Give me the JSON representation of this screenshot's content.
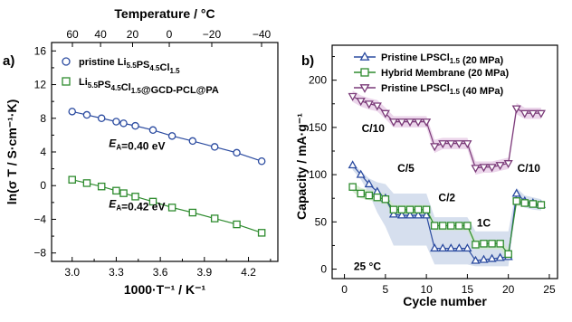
{
  "chart_data": [
    {
      "panel_label": "a)",
      "type": "scatter",
      "xlabel": "1000·T⁻¹ / K⁻¹",
      "ylabel": "ln(σ T / S·cm⁻¹·K)",
      "top_xlabel": "Temperature / °C",
      "xlim": [
        2.86,
        4.4
      ],
      "ylim": [
        -9,
        17
      ],
      "xticks": [
        3.0,
        3.3,
        3.6,
        3.9,
        4.2
      ],
      "xtick_labels": [
        "3.0",
        "3.3",
        "3.6",
        "3.9",
        "4.2"
      ],
      "yticks": [
        -8,
        -4,
        0,
        4,
        8,
        12,
        16
      ],
      "ytick_labels": [
        "−8",
        "−4",
        "0",
        "4",
        "8",
        "12",
        "16"
      ],
      "top_ticks": [
        60,
        40,
        20,
        0,
        -20,
        -40
      ],
      "top_tick_labels": [
        "60",
        "40",
        "20",
        "0",
        "−20",
        "−40"
      ],
      "legend_position": "top-right",
      "series": [
        {
          "name_main": "pristine Li",
          "name_parts": [
            [
              "pristine Li",
              ""
            ],
            [
              "5.5",
              "sub"
            ],
            [
              "PS",
              ""
            ],
            [
              "4.5",
              "sub"
            ],
            [
              "Cl",
              ""
            ],
            [
              "1.5",
              "sub"
            ]
          ],
          "marker": "circle",
          "color": "#2b4ba0",
          "x": [
            3.0,
            3.1,
            3.2,
            3.3,
            3.35,
            3.43,
            3.55,
            3.68,
            3.82,
            3.97,
            4.12,
            4.29
          ],
          "y": [
            8.8,
            8.4,
            8.0,
            7.6,
            7.4,
            7.1,
            6.6,
            5.9,
            5.3,
            4.6,
            3.9,
            2.9
          ]
        },
        {
          "name_parts": [
            [
              "Li",
              ""
            ],
            [
              "5.5",
              "sub"
            ],
            [
              "PS",
              ""
            ],
            [
              "4.5",
              "sub"
            ],
            [
              "Cl",
              ""
            ],
            [
              "1.5",
              "sub"
            ],
            [
              "@GCD-PCL@PA",
              ""
            ]
          ],
          "marker": "square",
          "color": "#2e8b2e",
          "x": [
            3.0,
            3.1,
            3.2,
            3.3,
            3.35,
            3.43,
            3.55,
            3.68,
            3.82,
            3.97,
            4.12,
            4.29
          ],
          "y": [
            0.7,
            0.3,
            -0.1,
            -0.6,
            -0.9,
            -1.3,
            -1.9,
            -2.6,
            -3.2,
            -3.9,
            -4.6,
            -5.6
          ]
        }
      ],
      "annotations": [
        {
          "text_parts": [
            [
              "E",
              "i"
            ],
            [
              "A",
              "sub"
            ],
            [
              "=0.40 eV",
              ""
            ]
          ],
          "color": "#2b4ba0",
          "x": 3.25,
          "y": 4.6
        },
        {
          "text_parts": [
            [
              "E",
              "i"
            ],
            [
              "A",
              "sub"
            ],
            [
              "=0.42 eV",
              ""
            ]
          ],
          "color": "#2e8b2e",
          "x": 3.25,
          "y": -2.6
        }
      ]
    },
    {
      "panel_label": "b)",
      "type": "line",
      "xlabel": "Cycle number",
      "ylabel": "Capacity / mA·g⁻¹",
      "xlim": [
        -1.5,
        26
      ],
      "ylim": [
        -10,
        237
      ],
      "xticks": [
        0,
        5,
        10,
        15,
        20,
        25
      ],
      "xtick_labels": [
        "0",
        "5",
        "10",
        "15",
        "20",
        "25"
      ],
      "yticks": [
        0,
        50,
        100,
        150,
        200
      ],
      "ytick_labels": [
        "0",
        "50",
        "100",
        "150",
        "200"
      ],
      "legend_position": "top-right",
      "temperature_note": "25 °C",
      "series": [
        {
          "name_parts": [
            [
              "Pristine LPSCl",
              ""
            ],
            [
              "1.5",
              "sub"
            ],
            [
              " (20 MPa)",
              ""
            ]
          ],
          "marker": "triangle-up",
          "color": "#2b4ba0",
          "fill": "#c8d4e8",
          "x": [
            1,
            2,
            3,
            4,
            5,
            6,
            7,
            8,
            9,
            10,
            11,
            12,
            13,
            14,
            15,
            16,
            17,
            18,
            19,
            20,
            21,
            22,
            23,
            24
          ],
          "y": [
            110,
            100,
            90,
            82,
            75,
            58,
            57,
            57,
            57,
            57,
            22,
            22,
            22,
            22,
            22,
            9,
            10,
            11,
            12,
            13,
            80,
            72,
            70,
            68
          ],
          "band_upper": [
            112,
            104,
            96,
            92,
            90,
            80,
            80,
            80,
            80,
            80,
            55,
            55,
            55,
            55,
            55,
            40,
            40,
            40,
            40,
            40,
            86,
            78,
            76,
            74
          ],
          "band_lower": [
            105,
            95,
            80,
            60,
            45,
            25,
            25,
            25,
            25,
            25,
            5,
            5,
            5,
            5,
            5,
            3,
            3,
            3,
            3,
            3,
            70,
            65,
            63,
            62
          ]
        },
        {
          "name_parts": [
            [
              "Hybrid Membrane (20 MPa)",
              ""
            ]
          ],
          "marker": "square",
          "color": "#2e8b2e",
          "fill": "#cfe8c8",
          "x": [
            1,
            2,
            3,
            4,
            5,
            6,
            7,
            8,
            9,
            10,
            11,
            12,
            13,
            14,
            15,
            16,
            17,
            18,
            19,
            20,
            21,
            22,
            23,
            24
          ],
          "y": [
            87,
            80,
            78,
            76,
            74,
            63,
            63,
            63,
            63,
            63,
            46,
            46,
            46,
            46,
            46,
            26,
            27,
            27,
            27,
            16,
            72,
            70,
            69,
            68
          ],
          "band_upper": [
            92,
            86,
            84,
            82,
            80,
            68,
            68,
            68,
            68,
            68,
            50,
            50,
            50,
            50,
            50,
            31,
            31,
            31,
            31,
            22,
            76,
            74,
            73,
            72
          ],
          "band_lower": [
            82,
            75,
            73,
            71,
            69,
            58,
            58,
            58,
            58,
            58,
            41,
            41,
            41,
            41,
            41,
            21,
            21,
            21,
            21,
            12,
            67,
            66,
            65,
            64
          ]
        },
        {
          "name_parts": [
            [
              "Pristine LPSCl",
              ""
            ],
            [
              "1.5",
              "sub"
            ],
            [
              " (40 MPa)",
              ""
            ]
          ],
          "marker": "triangle-down",
          "color": "#7a3a78",
          "fill": "#e6c8e4",
          "x": [
            1,
            2,
            3,
            4,
            5,
            6,
            7,
            8,
            9,
            10,
            11,
            12,
            13,
            14,
            15,
            16,
            17,
            18,
            19,
            20,
            21,
            22,
            23,
            24
          ],
          "y": [
            183,
            178,
            175,
            173,
            165,
            156,
            156,
            156,
            156,
            156,
            130,
            133,
            133,
            133,
            133,
            107,
            108,
            108,
            110,
            112,
            170,
            165,
            165,
            165
          ],
          "band_upper": [
            189,
            184,
            181,
            179,
            171,
            162,
            162,
            162,
            162,
            162,
            137,
            139,
            139,
            139,
            139,
            114,
            114,
            114,
            116,
            118,
            176,
            171,
            171,
            171
          ],
          "band_lower": [
            177,
            172,
            169,
            167,
            159,
            150,
            150,
            150,
            150,
            150,
            123,
            127,
            127,
            127,
            127,
            100,
            102,
            102,
            104,
            106,
            164,
            159,
            159,
            159
          ]
        }
      ],
      "rate_labels": [
        {
          "text": "C/10",
          "x": 3.5,
          "y": 145
        },
        {
          "text": "C/5",
          "x": 7.5,
          "y": 103
        },
        {
          "text": "C/2",
          "x": 12.5,
          "y": 72
        },
        {
          "text": "1C",
          "x": 17.0,
          "y": 45
        },
        {
          "text": "C/10",
          "x": 22.5,
          "y": 103
        }
      ]
    }
  ]
}
